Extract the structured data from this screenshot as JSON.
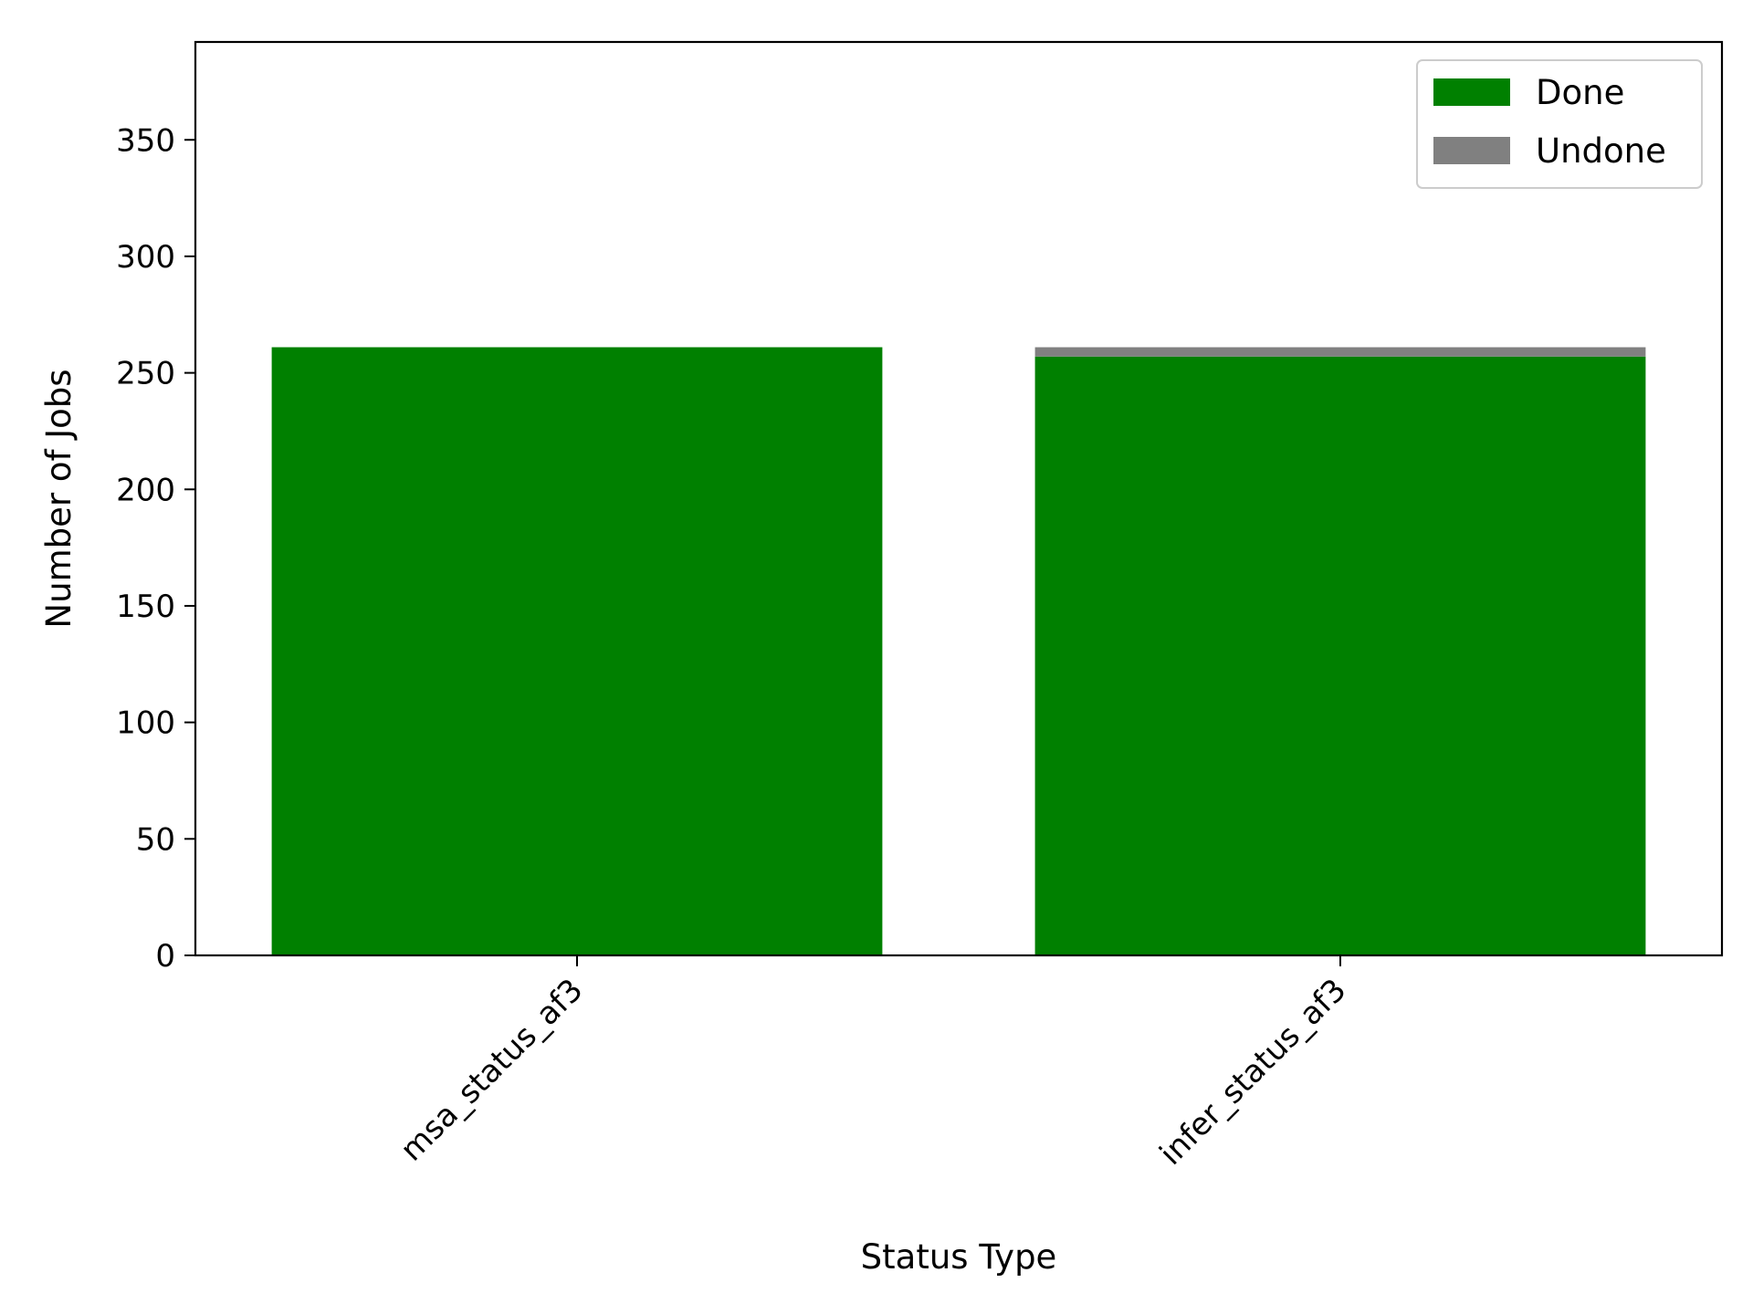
{
  "chart_data": {
    "type": "bar",
    "stacked": true,
    "title": "",
    "xlabel": "Status Type",
    "ylabel": "Number of Jobs",
    "categories": [
      "msa_status_af3",
      "infer_status_af3"
    ],
    "series": [
      {
        "name": "Done",
        "values": [
          261,
          257
        ],
        "color": "#008000"
      },
      {
        "name": "Undone",
        "values": [
          0,
          4
        ],
        "color": "#808080"
      }
    ],
    "ylim": [
      0,
      392
    ],
    "yticks": [
      0,
      50,
      100,
      150,
      200,
      250,
      300,
      350
    ],
    "grid": false,
    "legend_position": "top-right",
    "xtick_rotation_deg": 45
  }
}
